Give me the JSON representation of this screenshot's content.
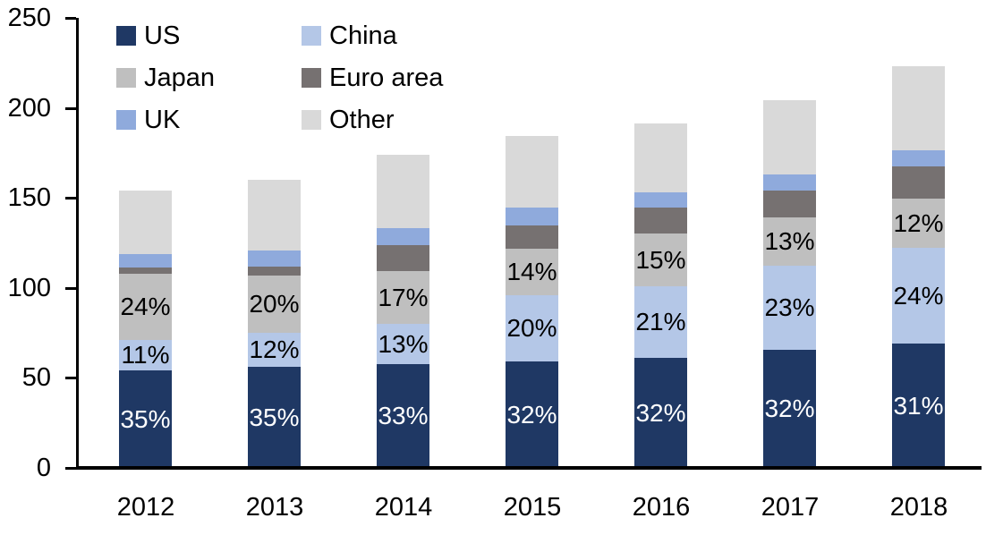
{
  "chart_data": {
    "type": "bar",
    "stacked": true,
    "title": "",
    "xlabel": "",
    "ylabel": "",
    "categories": [
      "2012",
      "2013",
      "2014",
      "2015",
      "2016",
      "2017",
      "2018"
    ],
    "series": [
      {
        "name": "US",
        "color": "#1f3864",
        "values": [
          54,
          56,
          57.5,
          59,
          61,
          65.5,
          69
        ],
        "labels": [
          "35%",
          "35%",
          "33%",
          "32%",
          "32%",
          "32%",
          "31%"
        ],
        "label_color": "#ffffff"
      },
      {
        "name": "China",
        "color": "#b4c7e7",
        "values": [
          17,
          19,
          22.5,
          37,
          40,
          47,
          53.5
        ],
        "labels": [
          "11%",
          "12%",
          "13%",
          "20%",
          "21%",
          "23%",
          "24%"
        ],
        "label_color": "#000000"
      },
      {
        "name": "Japan",
        "color": "#bfbfbf",
        "values": [
          37,
          32,
          29.5,
          26,
          29,
          26.5,
          27
        ],
        "labels": [
          "24%",
          "20%",
          "17%",
          "14%",
          "15%",
          "13%",
          "12%"
        ],
        "label_color": "#000000"
      },
      {
        "name": "Euro area",
        "color": "#767171",
        "values": [
          3.5,
          5,
          14.5,
          12.5,
          14.5,
          15,
          18
        ],
        "labels": null,
        "label_color": null
      },
      {
        "name": "UK",
        "color": "#8faadc",
        "values": [
          7.5,
          9,
          9,
          10,
          8.5,
          9,
          9
        ],
        "labels": null,
        "label_color": null
      },
      {
        "name": "Other",
        "color": "#d9d9d9",
        "values": [
          35,
          39,
          41,
          40,
          38.5,
          41.5,
          46.5
        ],
        "labels": null,
        "label_color": null
      }
    ],
    "totals": [
      154,
      160,
      174,
      184.5,
      191.5,
      204.5,
      223
    ],
    "ylim": [
      0,
      250
    ],
    "yticks": [
      0,
      50,
      100,
      150,
      200,
      250
    ],
    "grid": false,
    "legend_position": "top-left",
    "legend_columns": [
      [
        "US",
        "Japan",
        "UK"
      ],
      [
        "China",
        "Euro area",
        "Other"
      ]
    ],
    "axis_color": "#000000",
    "background": "#ffffff"
  }
}
